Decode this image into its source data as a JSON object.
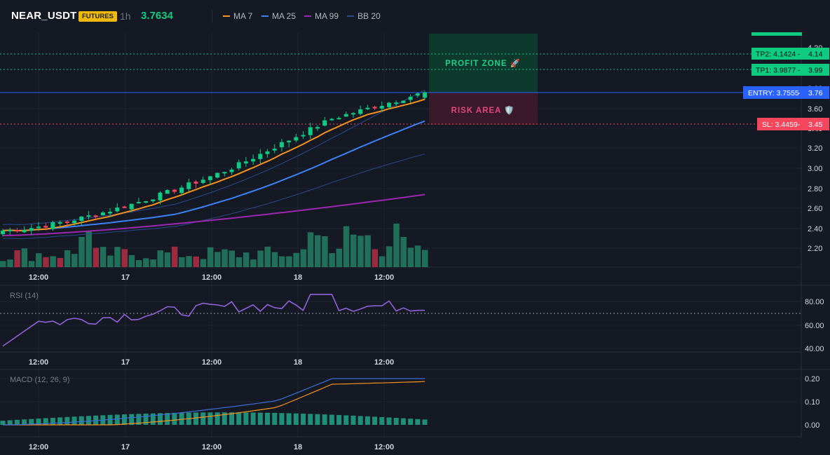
{
  "header": {
    "symbol": "NEAR_USDT",
    "badge": "FUTURES",
    "timeframe": "1h",
    "last_price": "3.7634",
    "legend": [
      {
        "label": "MA 7",
        "color": "#f7931a"
      },
      {
        "label": "MA 25",
        "color": "#3b82f6"
      },
      {
        "label": "MA 99",
        "color": "#9c27b0"
      },
      {
        "label": "BB 20",
        "color": "#2a4a8a"
      }
    ]
  },
  "colors": {
    "up": "#0ecb81",
    "down": "#f6465d",
    "entry": "#2962ff",
    "tp": "#0ecb81",
    "sl": "#f6465d"
  },
  "main_axis": {
    "ticks": [
      "4.20",
      "3.80",
      "3.60",
      "3.40",
      "3.20",
      "3.00",
      "2.80",
      "2.60",
      "2.40",
      "2.20"
    ]
  },
  "time_axis": {
    "ticks": [
      "12:00",
      "17",
      "12:00",
      "18",
      "12:00"
    ]
  },
  "zones": {
    "profit_label": "PROFIT ZONE 🚀",
    "risk_label": "RISK AREA 🛡️"
  },
  "levels": {
    "tp2": {
      "label": "TP2: 4.1424",
      "axis": "4.14",
      "value": 4.1424
    },
    "tp1": {
      "label": "TP1: 3.9877",
      "axis": "3.99",
      "value": 3.9877
    },
    "entry": {
      "label": "ENTRY: 3.7555",
      "axis": "3.76",
      "value": 3.7555
    },
    "sl": {
      "label": "SL: 3.4459",
      "axis": "3.45",
      "value": 3.4459
    }
  },
  "rsi": {
    "label": "RSI (14)",
    "ticks": [
      "80.00",
      "60.00",
      "40.00"
    ]
  },
  "macd": {
    "label": "MACD (12, 26, 9)",
    "ticks": [
      "0.20",
      "0.10",
      "0.00"
    ]
  },
  "chart_data": {
    "type": "candlestick",
    "interval": "1h",
    "count": 60,
    "start": {
      "open": 2.33,
      "close": 2.38
    },
    "end": {
      "open": 3.71,
      "close": 3.7634
    },
    "ma7_end": 3.68,
    "ma25_end": 3.42,
    "ma99_end": 2.74
  }
}
